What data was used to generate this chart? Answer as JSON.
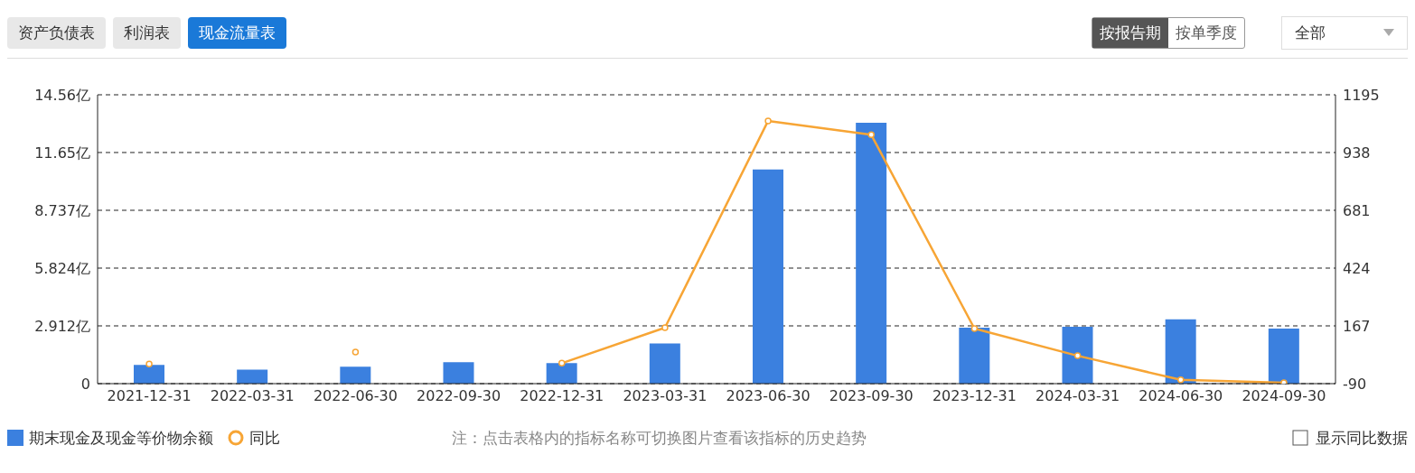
{
  "chart_data": {
    "type": "bar",
    "categories": [
      "2021-12-31",
      "2022-03-31",
      "2022-06-30",
      "2022-09-30",
      "2022-12-31",
      "2023-03-31",
      "2023-06-30",
      "2023-09-30",
      "2023-12-31",
      "2024-03-31",
      "2024-06-30",
      "2024-09-30"
    ],
    "series": [
      {
        "name": "期末现金及现金等价物余额",
        "color": "#3b80df",
        "values": [
          0.94,
          0.7,
          0.85,
          1.08,
          1.03,
          2.02,
          10.8,
          13.15,
          2.82,
          2.87,
          3.24,
          2.77
        ]
      },
      {
        "name": "同比",
        "type": "line",
        "axis": "y2",
        "color": "#f7a535",
        "marker": "circle",
        "values": [
          -3,
          null,
          51,
          null,
          1,
          159,
          1079,
          1017,
          155,
          34,
          -73,
          -86
        ]
      }
    ],
    "ylim": [
      0,
      14.56
    ],
    "yticks": [
      0,
      {
        "value": 2.912,
        "label": "2.912亿"
      },
      {
        "value": 5.824,
        "label": "5.824亿"
      },
      {
        "value": 8.737,
        "label": "8.737亿"
      },
      {
        "value": 11.65,
        "label": "11.65亿"
      },
      {
        "value": 14.56,
        "label": "14.56亿"
      }
    ],
    "y2lim": [
      -90,
      1195
    ],
    "y2ticks": [
      -90,
      167,
      424,
      681,
      938,
      1195
    ],
    "grid": "y",
    "legend": "bottom left",
    "line_style": "solid",
    "annotations": [
      "资产负债表",
      "利润表",
      "现金流量表",
      "按报告期",
      "按单季度",
      "全部",
      "注：点击表格内的指标名称可切换图片查看该指标的历史趋势",
      "显示同比数据"
    ]
  }
}
